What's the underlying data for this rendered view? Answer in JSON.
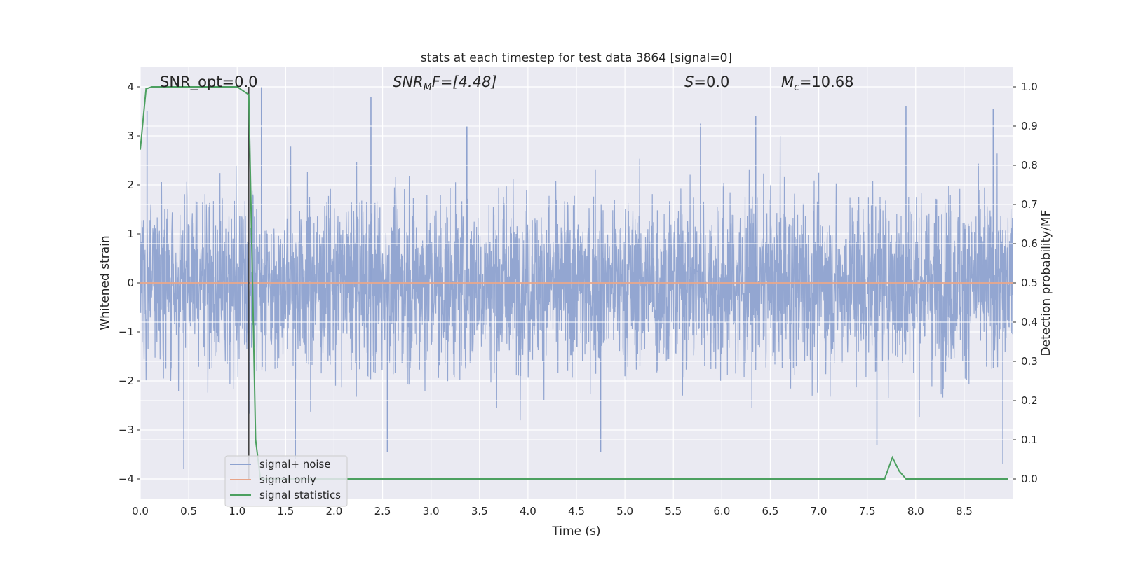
{
  "chart_data": {
    "type": "line",
    "title": "stats at each timestep for test data 3864 [signal=0]",
    "xlabel": "Time (s)",
    "ylabel": "Whitened strain",
    "y2label": "Detection probability/MF",
    "xlim": [
      0.0,
      9.0
    ],
    "ylim": [
      -4.4,
      4.4
    ],
    "y2lim": [
      -0.05,
      1.05
    ],
    "x_ticks": [
      "0.0",
      "0.5",
      "1.0",
      "1.5",
      "2.0",
      "2.5",
      "3.0",
      "3.5",
      "4.0",
      "4.5",
      "5.0",
      "5.5",
      "6.0",
      "6.5",
      "7.0",
      "7.5",
      "8.0",
      "8.5"
    ],
    "y_ticks": [
      "4",
      "3",
      "2",
      "1",
      "0",
      "−1",
      "−2",
      "−3",
      "−4"
    ],
    "y2_ticks": [
      "1.0",
      "0.9",
      "0.8",
      "0.7",
      "0.6",
      "0.5",
      "0.4",
      "0.3",
      "0.2",
      "0.1",
      "0.0"
    ],
    "grid": true,
    "legend_position": "lower-left",
    "annotations": {
      "snr_opt": "SNR_opt=0.0",
      "snr_mf_base": "SNR",
      "snr_mf_sub": "M",
      "snr_mf_rest": "F=[4.48]",
      "s_var": "S",
      "s_rest": "=0.0",
      "mc_base": "M",
      "mc_sub": "c",
      "mc_rest": "=10.68"
    },
    "vertical_marker_x": 1.12,
    "series": [
      {
        "name": "signal+ noise",
        "color": "#8ea2cf",
        "description_envelope": {
          "typical_amplitude": 2.0,
          "max_positive": 4.0,
          "max_negative": -3.8,
          "x_range": [
            0.0,
            9.0
          ]
        },
        "spikes": [
          {
            "x": 0.07,
            "y": 3.5
          },
          {
            "x": 1.25,
            "y": 4.0
          },
          {
            "x": 2.38,
            "y": 3.8
          },
          {
            "x": 3.37,
            "y": 3.2
          },
          {
            "x": 5.78,
            "y": 3.25
          },
          {
            "x": 6.35,
            "y": 3.4
          },
          {
            "x": 7.9,
            "y": 3.6
          },
          {
            "x": 8.8,
            "y": 3.55
          },
          {
            "x": 0.45,
            "y": -3.8
          },
          {
            "x": 1.6,
            "y": -3.6
          },
          {
            "x": 2.55,
            "y": -3.45
          },
          {
            "x": 4.75,
            "y": -3.45
          },
          {
            "x": 8.9,
            "y": -3.7
          },
          {
            "x": 7.6,
            "y": -3.3
          }
        ]
      },
      {
        "name": "signal only",
        "color": "#e8a488",
        "x": [
          0.0,
          9.0
        ],
        "y": [
          0.0,
          0.0
        ]
      },
      {
        "name": "signal statistics",
        "color": "#4ca060",
        "axis": "right",
        "x": [
          0.0,
          0.06,
          0.12,
          1.0,
          1.12,
          1.15,
          1.19,
          1.24,
          1.4,
          7.68,
          7.76,
          7.83,
          7.9,
          8.95
        ],
        "y": [
          0.84,
          0.995,
          1.0,
          1.0,
          0.98,
          0.6,
          0.1,
          0.0,
          0.0,
          0.0,
          0.055,
          0.02,
          0.0,
          0.0
        ]
      }
    ]
  }
}
